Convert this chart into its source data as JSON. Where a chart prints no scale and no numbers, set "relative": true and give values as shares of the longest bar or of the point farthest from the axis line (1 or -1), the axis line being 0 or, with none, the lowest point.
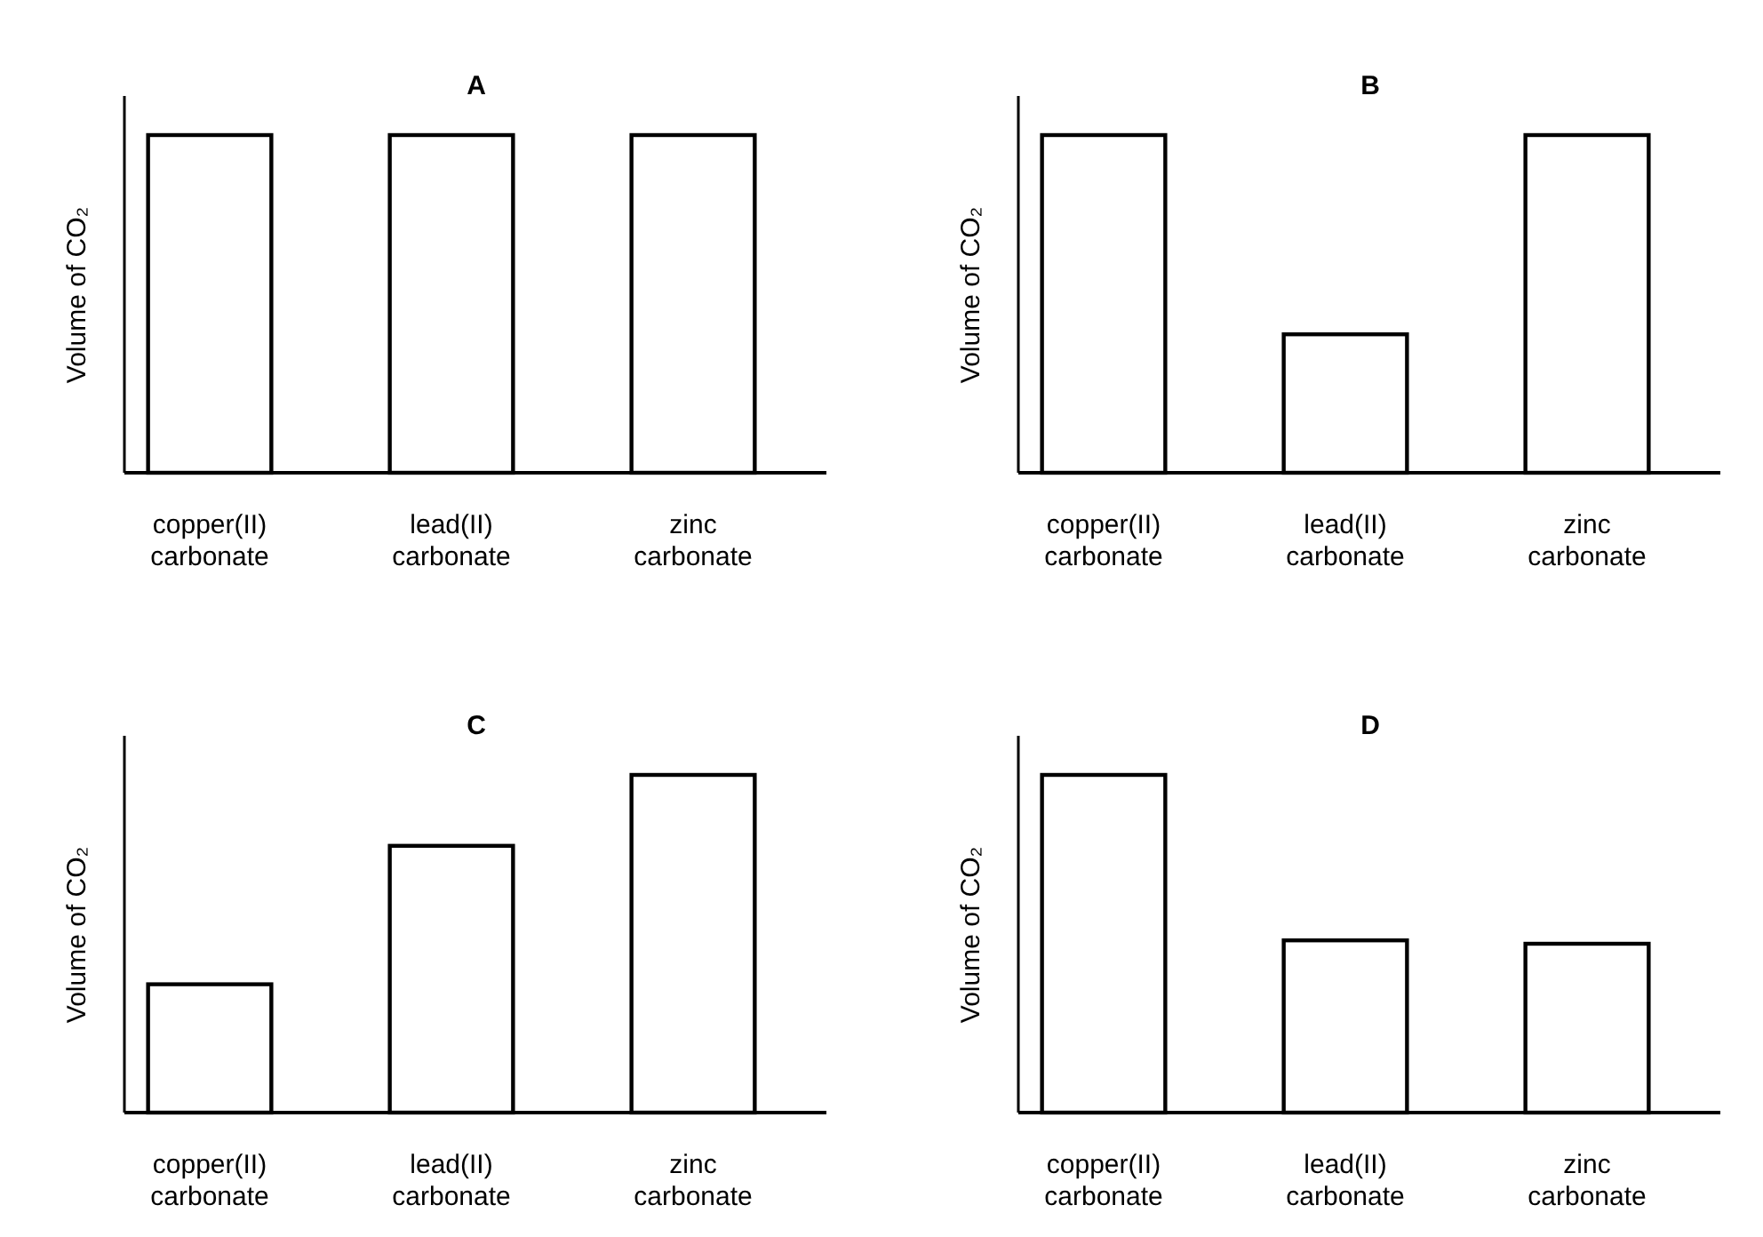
{
  "chart_data": [
    {
      "type": "bar",
      "title": "A",
      "ylabel": "Volume of CO₂",
      "relative": true,
      "categories": [
        "copper(II) carbonate",
        "lead(II) carbonate",
        "zinc carbonate"
      ],
      "values": [
        1,
        1,
        1
      ],
      "color": "#ffffff"
    },
    {
      "type": "bar",
      "title": "B",
      "ylabel": "Volume of CO₂",
      "relative": true,
      "categories": [
        "copper(II) carbonate",
        "lead(II) carbonate",
        "zinc carbonate"
      ],
      "values": [
        1,
        0.41,
        1
      ],
      "color": "#ffffff"
    },
    {
      "type": "bar",
      "title": "C",
      "ylabel": "Volume of CO₂",
      "relative": true,
      "categories": [
        "copper(II) carbonate",
        "lead(II) carbonate",
        "zinc carbonate"
      ],
      "values": [
        0.38,
        0.79,
        1
      ],
      "color": "#ffffff"
    },
    {
      "type": "bar",
      "title": "D",
      "ylabel": "Volume of CO₂",
      "relative": true,
      "categories": [
        "copper(II) carbonate",
        "lead(II) carbonate",
        "zinc carbonate"
      ],
      "values": [
        1,
        0.51,
        0.5
      ],
      "color": "#ffffff"
    }
  ]
}
